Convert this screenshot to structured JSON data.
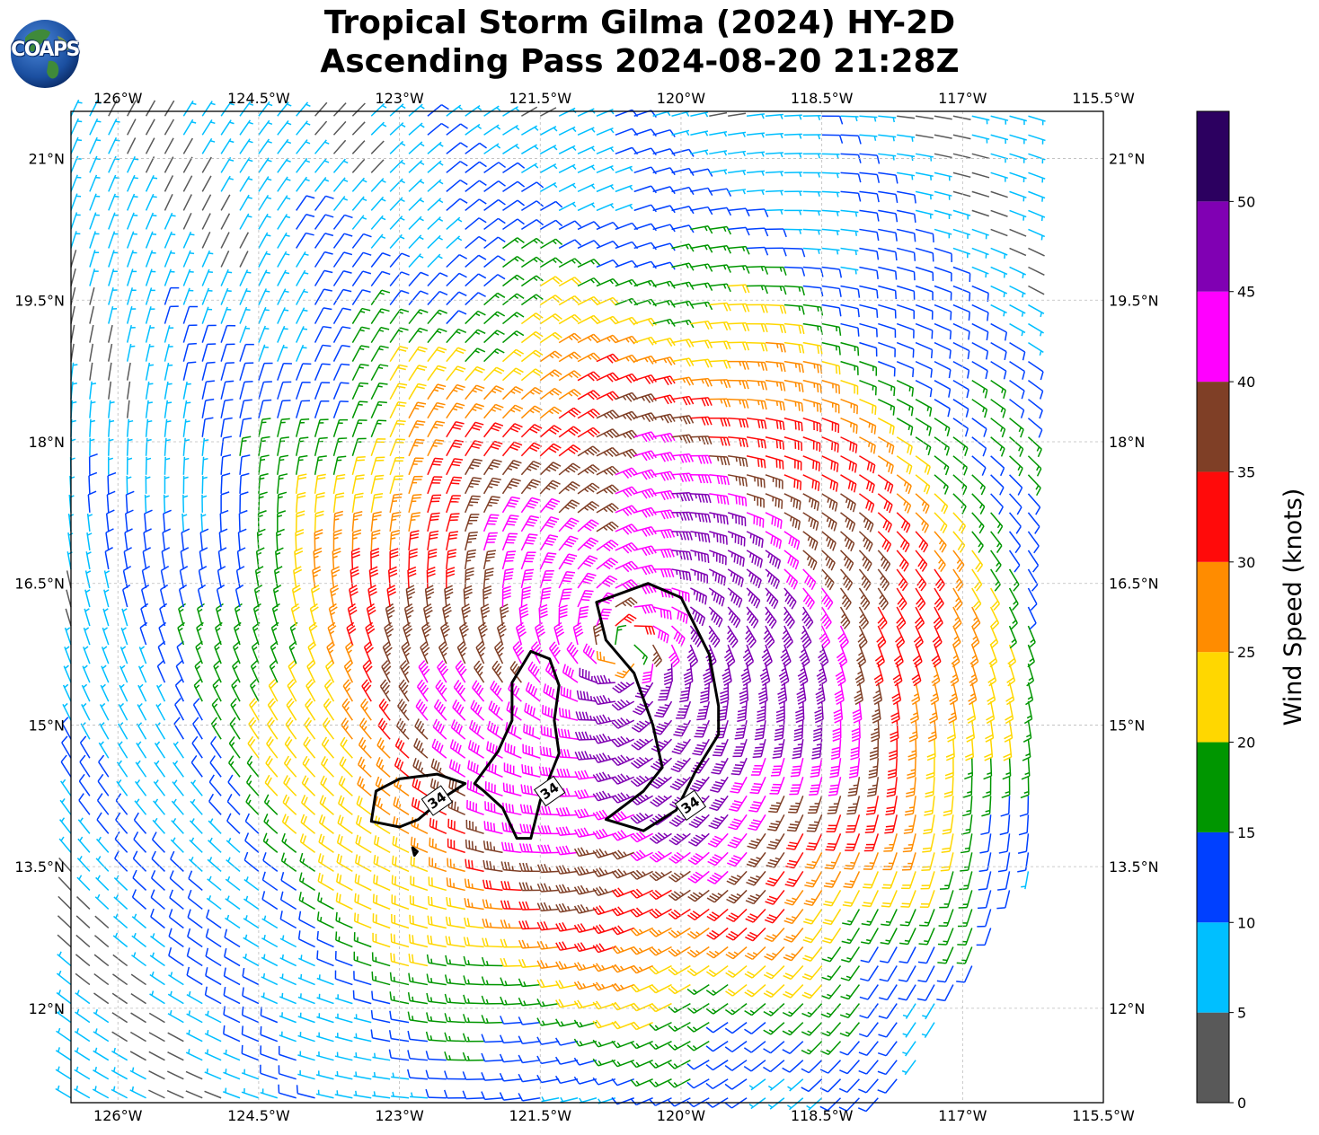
{
  "title_line1": "Tropical Storm Gilma (2024) HY-2D",
  "title_line2": "Ascending Pass 2024-08-20 21:28Z",
  "logo_text": "COAPS",
  "map": {
    "lon_min": -126.5,
    "lon_max": -115.5,
    "lat_min": 11.0,
    "lat_max": 21.5,
    "x_ticks": [
      {
        "lon": -126.0,
        "label": "126°W"
      },
      {
        "lon": -124.5,
        "label": "124.5°W"
      },
      {
        "lon": -123.0,
        "label": "123°W"
      },
      {
        "lon": -121.5,
        "label": "121.5°W"
      },
      {
        "lon": -120.0,
        "label": "120°W"
      },
      {
        "lon": -118.5,
        "label": "118.5°W"
      },
      {
        "lon": -117.0,
        "label": "117°W"
      },
      {
        "lon": -115.5,
        "label": "115.5°W"
      }
    ],
    "y_ticks": [
      {
        "lat": 21.0,
        "label": "21°N"
      },
      {
        "lat": 19.5,
        "label": "19.5°N"
      },
      {
        "lat": 18.0,
        "label": "18°N"
      },
      {
        "lat": 16.5,
        "label": "16.5°N"
      },
      {
        "lat": 15.0,
        "label": "15°N"
      },
      {
        "lat": 13.5,
        "label": "13.5°N"
      },
      {
        "lat": 12.0,
        "label": "12°N"
      }
    ],
    "gridlines": true
  },
  "chart_data": {
    "type": "wind-barb map",
    "storm_center": {
      "lon": -120.6,
      "lat": 15.8
    },
    "swath_edge_lon": -116.2,
    "contour_34kt": {
      "level": "34",
      "polygons": [
        [
          [
            -123.25,
            14.3
          ],
          [
            -123.0,
            14.43
          ],
          [
            -122.6,
            14.48
          ],
          [
            -122.3,
            14.38
          ],
          [
            -122.5,
            14.25
          ],
          [
            -122.8,
            14.0
          ],
          [
            -123.0,
            13.92
          ],
          [
            -123.3,
            13.98
          ],
          [
            -123.25,
            14.3
          ]
        ],
        [
          [
            -121.6,
            15.78
          ],
          [
            -121.4,
            15.7
          ],
          [
            -121.3,
            15.42
          ],
          [
            -121.35,
            15.05
          ],
          [
            -121.3,
            14.7
          ],
          [
            -121.5,
            14.2
          ],
          [
            -121.6,
            13.8
          ],
          [
            -121.75,
            13.8
          ],
          [
            -121.9,
            14.12
          ],
          [
            -122.1,
            14.3
          ],
          [
            -122.2,
            14.38
          ],
          [
            -121.95,
            14.72
          ],
          [
            -121.8,
            15.05
          ],
          [
            -121.8,
            15.45
          ],
          [
            -121.6,
            15.78
          ]
        ],
        [
          [
            -120.35,
            16.5
          ],
          [
            -120.0,
            16.35
          ],
          [
            -119.7,
            15.75
          ],
          [
            -119.6,
            15.2
          ],
          [
            -119.6,
            14.9
          ],
          [
            -119.85,
            14.5
          ],
          [
            -120.05,
            14.1
          ],
          [
            -120.4,
            13.88
          ],
          [
            -120.8,
            14.0
          ],
          [
            -120.4,
            14.3
          ],
          [
            -120.2,
            14.55
          ],
          [
            -120.3,
            15.0
          ],
          [
            -120.5,
            15.55
          ],
          [
            -120.8,
            15.9
          ],
          [
            -120.9,
            16.3
          ],
          [
            -120.35,
            16.5
          ]
        ],
        [
          [
            -122.86,
            13.7
          ],
          [
            -122.81,
            13.66
          ],
          [
            -122.84,
            13.62
          ],
          [
            -122.86,
            13.7
          ]
        ]
      ],
      "labels": [
        {
          "lon": -122.6,
          "lat": 14.2,
          "text": "34"
        },
        {
          "lon": -121.4,
          "lat": 14.3,
          "text": "34"
        },
        {
          "lon": -119.9,
          "lat": 14.15,
          "text": "34"
        }
      ]
    },
    "wind_speed_bins": [
      {
        "min": 0,
        "max": 5,
        "color": "#595959"
      },
      {
        "min": 5,
        "max": 10,
        "color": "#00bfff"
      },
      {
        "min": 10,
        "max": 15,
        "color": "#0040ff"
      },
      {
        "min": 15,
        "max": 20,
        "color": "#009600"
      },
      {
        "min": 20,
        "max": 25,
        "color": "#ffd700"
      },
      {
        "min": 25,
        "max": 30,
        "color": "#ff8c00"
      },
      {
        "min": 30,
        "max": 35,
        "color": "#ff0a0a"
      },
      {
        "min": 35,
        "max": 40,
        "color": "#7f3f26"
      },
      {
        "min": 40,
        "max": 45,
        "color": "#ff00ff"
      },
      {
        "min": 45,
        "max": 50,
        "color": "#8000b3"
      },
      {
        "min": 50,
        "max": 55,
        "color": "#2c0060"
      }
    ],
    "colorbar": {
      "label": "Wind Speed (knots)",
      "ticks": [
        "0",
        "5",
        "10",
        "15",
        "20",
        "25",
        "30",
        "35",
        "40",
        "45",
        "50"
      ]
    }
  }
}
